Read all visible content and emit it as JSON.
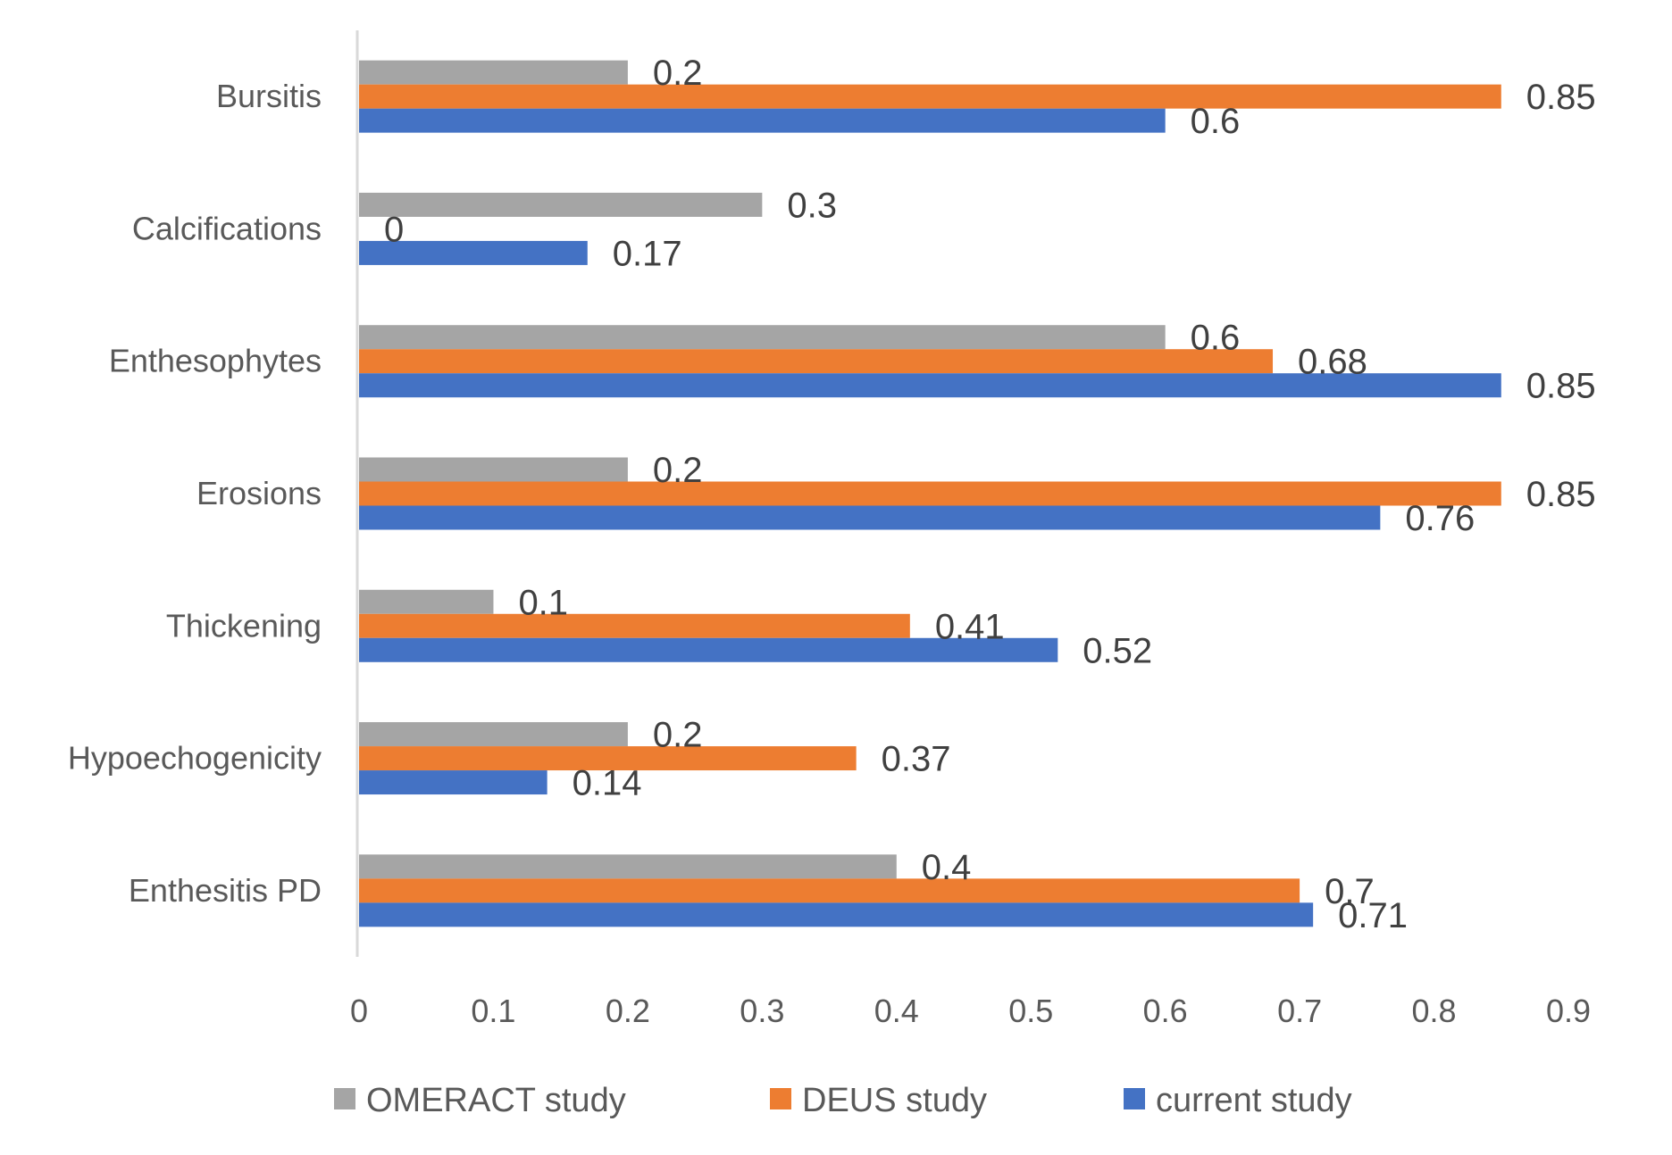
{
  "chart_data": {
    "type": "bar",
    "orientation": "horizontal",
    "title": "",
    "xlabel": "",
    "ylabel": "",
    "xlim": [
      0,
      0.9
    ],
    "xticks": [
      "0",
      "0.1",
      "0.2",
      "0.3",
      "0.4",
      "0.5",
      "0.6",
      "0.7",
      "0.8",
      "0.9"
    ],
    "grid": false,
    "legend_position": "bottom",
    "categories": [
      "Bursitis",
      "Calcifications",
      "Enthesophytes",
      "Erosions",
      "Thickening",
      "Hypoechogenicity",
      "Enthesitis PD"
    ],
    "series": [
      {
        "name": "OMERACT study",
        "color": "#a5a5a5",
        "values": [
          0.2,
          0.3,
          0.6,
          0.2,
          0.1,
          0.2,
          0.4
        ],
        "labels": [
          "0.2",
          "0.3",
          "0.6",
          "0.2",
          "0.1",
          "0.2",
          "0.4"
        ]
      },
      {
        "name": "DEUS study",
        "color": "#ed7d31",
        "values": [
          0.85,
          0,
          0.68,
          0.85,
          0.41,
          0.37,
          0.7
        ],
        "labels": [
          "0.85",
          "0",
          "0.68",
          "0.85",
          "0.41",
          "0.37",
          "0.7"
        ]
      },
      {
        "name": "current study",
        "color": "#4472c4",
        "values": [
          0.6,
          0.17,
          0.85,
          0.76,
          0.52,
          0.14,
          0.71
        ],
        "labels": [
          "0.6",
          "0.17",
          "0.85",
          "0.76",
          "0.52",
          "0.14",
          "0.71"
        ]
      }
    ]
  }
}
